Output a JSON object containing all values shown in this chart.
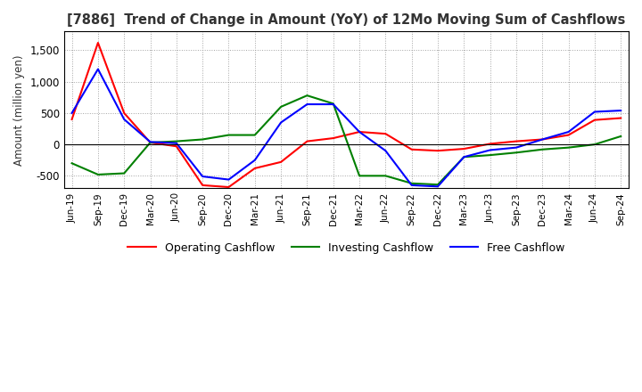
{
  "title": "[7886]  Trend of Change in Amount (YoY) of 12Mo Moving Sum of Cashflows",
  "ylabel": "Amount (million yen)",
  "ylim": [
    -700,
    1800
  ],
  "yticks": [
    -500,
    0,
    500,
    1000,
    1500
  ],
  "background_color": "#ffffff",
  "grid_color": "#999999",
  "x_labels": [
    "Jun-19",
    "Sep-19",
    "Dec-19",
    "Mar-20",
    "Jun-20",
    "Sep-20",
    "Dec-20",
    "Mar-21",
    "Jun-21",
    "Sep-21",
    "Dec-21",
    "Mar-22",
    "Jun-22",
    "Sep-22",
    "Dec-22",
    "Mar-23",
    "Jun-23",
    "Sep-23",
    "Dec-23",
    "Mar-24",
    "Jun-24",
    "Sep-24"
  ],
  "operating": [
    400,
    1620,
    500,
    30,
    -30,
    -650,
    -680,
    -380,
    -280,
    50,
    100,
    200,
    170,
    -80,
    -100,
    -70,
    10,
    50,
    80,
    150,
    390,
    420
  ],
  "investing": [
    -300,
    -480,
    -460,
    30,
    50,
    80,
    150,
    150,
    600,
    780,
    650,
    -500,
    -500,
    -620,
    -640,
    -200,
    -170,
    -130,
    -80,
    -50,
    0,
    130
  ],
  "free": [
    500,
    1200,
    400,
    40,
    20,
    -510,
    -560,
    -250,
    350,
    640,
    640,
    200,
    -100,
    -650,
    -670,
    -200,
    -90,
    -50,
    80,
    200,
    520,
    540
  ],
  "op_color": "#ff0000",
  "inv_color": "#008000",
  "free_color": "#0000ff"
}
